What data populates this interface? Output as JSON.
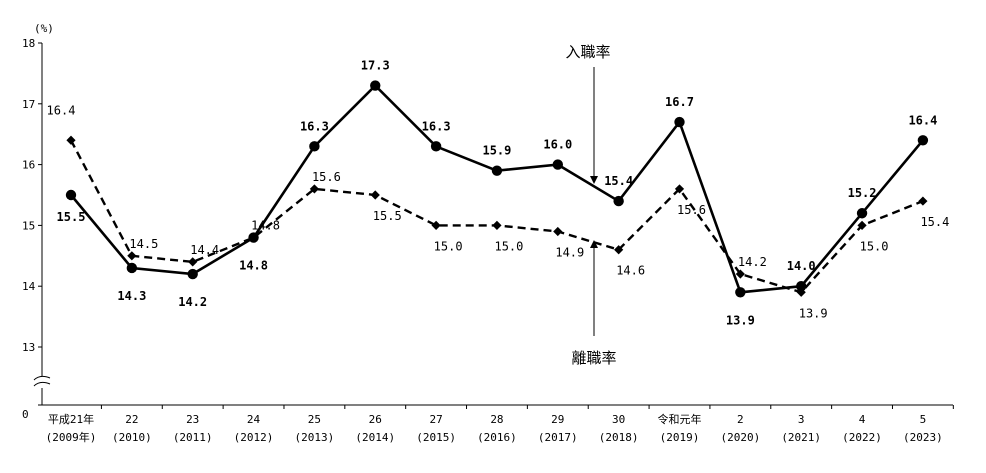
{
  "chart_data": {
    "type": "line",
    "unit": "(%)",
    "y_ticks": [
      13,
      14,
      15,
      16,
      17,
      18
    ],
    "y_zero_label": "0",
    "ylim": [
      12.4,
      18
    ],
    "y_axis_break": true,
    "grid": false,
    "categories": [
      [
        "平成21年",
        "(2009年)"
      ],
      [
        "22",
        "(2010)"
      ],
      [
        "23",
        "(2011)"
      ],
      [
        "24",
        "(2012)"
      ],
      [
        "25",
        "(2013)"
      ],
      [
        "26",
        "(2014)"
      ],
      [
        "27",
        "(2015)"
      ],
      [
        "28",
        "(2016)"
      ],
      [
        "29",
        "(2017)"
      ],
      [
        "30",
        "(2018)"
      ],
      [
        "令和元年",
        "(2019)"
      ],
      [
        "2",
        "(2020)"
      ],
      [
        "3",
        "(2021)"
      ],
      [
        "4",
        "(2022)"
      ],
      [
        "5",
        "(2023)"
      ]
    ],
    "series": [
      {
        "name": "入職率",
        "style": "solid",
        "marker": "circle",
        "values": [
          15.5,
          14.3,
          14.2,
          14.8,
          16.3,
          17.3,
          16.3,
          15.9,
          16.0,
          15.4,
          16.7,
          13.9,
          14.0,
          15.2,
          16.4
        ],
        "labels": [
          "15.5",
          "14.3",
          "14.2",
          "14.8",
          "16.3",
          "17.3",
          "16.3",
          "15.9",
          "16.0",
          "15.4",
          "16.7",
          "13.9",
          "14.0",
          "15.2",
          "16.4"
        ],
        "label_side": [
          "right",
          "below",
          "below",
          "below",
          "above",
          "above",
          "above",
          "above",
          "above",
          "above",
          "above",
          "below",
          "above",
          "above",
          "above"
        ]
      },
      {
        "name": "離職率",
        "style": "dashed",
        "marker": "diamond",
        "values": [
          16.4,
          14.5,
          14.4,
          14.8,
          15.6,
          15.5,
          15.0,
          15.0,
          14.9,
          14.6,
          15.6,
          14.2,
          13.9,
          15.0,
          15.4
        ],
        "labels": [
          "16.4",
          "14.5",
          "14.4",
          "14.8",
          "15.6",
          "15.5",
          "15.0",
          "15.0",
          "14.9",
          "14.6",
          "15.6",
          "14.2",
          "13.9",
          "15.0",
          "15.4"
        ],
        "label_side": [
          "above",
          "above",
          "above",
          "above",
          "above",
          "below",
          "below",
          "below",
          "below",
          "below",
          "below",
          "above",
          "below",
          "below",
          "below"
        ]
      }
    ]
  }
}
